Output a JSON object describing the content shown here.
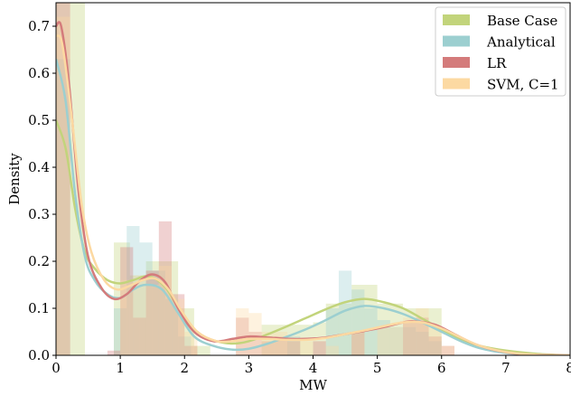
{
  "chart_data": {
    "type": "histogram-density",
    "xlabel": "MW",
    "ylabel": "Density",
    "xlim": [
      0,
      8
    ],
    "ylim": [
      0,
      0.75
    ],
    "xticks": [
      "0",
      "1",
      "2",
      "3",
      "4",
      "5",
      "6",
      "7",
      "8"
    ],
    "yticks": [
      "0.0",
      "0.1",
      "0.2",
      "0.3",
      "0.4",
      "0.5",
      "0.6",
      "0.7"
    ],
    "legend_position": "top-right",
    "series": [
      {
        "name": "Base Case",
        "color": "#c2d47b",
        "bins": [
          [
            0,
            0.22,
            0.75
          ],
          [
            0.22,
            0.45,
            0.75
          ],
          [
            0.9,
            1.15,
            0.24
          ],
          [
            1.15,
            1.4,
            0.17
          ],
          [
            1.4,
            1.65,
            0.2
          ],
          [
            1.65,
            1.9,
            0.2
          ],
          [
            1.9,
            2.15,
            0.1
          ],
          [
            2.15,
            2.4,
            0.02
          ],
          [
            3.2,
            3.6,
            0.065
          ],
          [
            3.6,
            4.0,
            0.065
          ],
          [
            4.0,
            4.2,
            0.07
          ],
          [
            4.2,
            4.6,
            0.11
          ],
          [
            4.6,
            5.0,
            0.15
          ],
          [
            5.0,
            5.4,
            0.11
          ],
          [
            5.4,
            5.8,
            0.1
          ],
          [
            5.8,
            6.0,
            0.1
          ]
        ],
        "curve": [
          [
            0,
            0.5
          ],
          [
            0.15,
            0.44
          ],
          [
            0.3,
            0.31
          ],
          [
            0.45,
            0.22
          ],
          [
            0.6,
            0.185
          ],
          [
            0.8,
            0.16
          ],
          [
            1.0,
            0.153
          ],
          [
            1.2,
            0.16
          ],
          [
            1.45,
            0.168
          ],
          [
            1.7,
            0.145
          ],
          [
            1.95,
            0.09
          ],
          [
            2.2,
            0.045
          ],
          [
            2.5,
            0.03
          ],
          [
            2.75,
            0.025
          ],
          [
            3.0,
            0.03
          ],
          [
            3.3,
            0.045
          ],
          [
            3.6,
            0.062
          ],
          [
            3.9,
            0.08
          ],
          [
            4.2,
            0.098
          ],
          [
            4.5,
            0.113
          ],
          [
            4.8,
            0.12
          ],
          [
            5.1,
            0.113
          ],
          [
            5.4,
            0.1
          ],
          [
            5.7,
            0.078
          ],
          [
            6.0,
            0.055
          ],
          [
            6.3,
            0.033
          ],
          [
            6.6,
            0.02
          ],
          [
            7.0,
            0.01
          ],
          [
            7.5,
            0.003
          ],
          [
            8.0,
            0.0
          ]
        ]
      },
      {
        "name": "Analytical",
        "color": "#9ccfd0",
        "bins": [
          [
            0,
            0.22,
            0.63
          ],
          [
            0.9,
            1.1,
            0.1
          ],
          [
            1.1,
            1.3,
            0.275
          ],
          [
            1.3,
            1.5,
            0.24
          ],
          [
            1.5,
            1.7,
            0.18
          ],
          [
            1.7,
            1.9,
            0.12
          ],
          [
            1.9,
            2.1,
            0.04
          ],
          [
            3.6,
            3.8,
            0.04
          ],
          [
            4.2,
            4.4,
            0.1
          ],
          [
            4.4,
            4.6,
            0.18
          ],
          [
            4.6,
            4.8,
            0.14
          ],
          [
            4.8,
            5.0,
            0.1
          ],
          [
            5.0,
            5.2,
            0.075
          ],
          [
            5.2,
            5.4,
            0.06
          ],
          [
            5.4,
            5.6,
            0.06
          ],
          [
            5.6,
            5.8,
            0.05
          ],
          [
            5.8,
            6.0,
            0.03
          ]
        ],
        "curve": [
          [
            0,
            0.63
          ],
          [
            0.15,
            0.54
          ],
          [
            0.3,
            0.34
          ],
          [
            0.45,
            0.21
          ],
          [
            0.6,
            0.16
          ],
          [
            0.8,
            0.13
          ],
          [
            1.0,
            0.122
          ],
          [
            1.2,
            0.14
          ],
          [
            1.4,
            0.15
          ],
          [
            1.65,
            0.14
          ],
          [
            1.9,
            0.09
          ],
          [
            2.15,
            0.04
          ],
          [
            2.45,
            0.02
          ],
          [
            2.75,
            0.012
          ],
          [
            3.0,
            0.014
          ],
          [
            3.3,
            0.025
          ],
          [
            3.6,
            0.04
          ],
          [
            3.9,
            0.056
          ],
          [
            4.2,
            0.075
          ],
          [
            4.5,
            0.095
          ],
          [
            4.8,
            0.105
          ],
          [
            5.1,
            0.1
          ],
          [
            5.4,
            0.088
          ],
          [
            5.7,
            0.07
          ],
          [
            6.0,
            0.05
          ],
          [
            6.3,
            0.03
          ],
          [
            6.6,
            0.015
          ],
          [
            7.0,
            0.005
          ],
          [
            7.5,
            0.001
          ],
          [
            8.0,
            0.0
          ]
        ]
      },
      {
        "name": "LR",
        "color": "#d47b7b",
        "bins": [
          [
            0,
            0.22,
            0.75
          ],
          [
            0.8,
            1.0,
            0.01
          ],
          [
            1.0,
            1.2,
            0.23
          ],
          [
            1.2,
            1.4,
            0.08
          ],
          [
            1.4,
            1.6,
            0.18
          ],
          [
            1.6,
            1.8,
            0.285
          ],
          [
            1.8,
            2.0,
            0.13
          ],
          [
            2.0,
            2.2,
            0.02
          ],
          [
            2.8,
            3.0,
            0.08
          ],
          [
            3.0,
            3.2,
            0.05
          ],
          [
            3.2,
            3.4,
            0.03
          ],
          [
            3.4,
            3.6,
            0.04
          ],
          [
            3.6,
            3.8,
            0.03
          ],
          [
            4.0,
            4.2,
            0.03
          ],
          [
            4.6,
            4.8,
            0.05
          ],
          [
            5.4,
            5.6,
            0.07
          ],
          [
            5.6,
            5.8,
            0.08
          ],
          [
            5.8,
            6.0,
            0.04
          ],
          [
            6.0,
            6.2,
            0.02
          ]
        ],
        "curve": [
          [
            0,
            0.7
          ],
          [
            0.08,
            0.7
          ],
          [
            0.2,
            0.58
          ],
          [
            0.35,
            0.35
          ],
          [
            0.5,
            0.21
          ],
          [
            0.7,
            0.145
          ],
          [
            0.9,
            0.12
          ],
          [
            1.1,
            0.13
          ],
          [
            1.3,
            0.158
          ],
          [
            1.5,
            0.172
          ],
          [
            1.7,
            0.155
          ],
          [
            1.9,
            0.1
          ],
          [
            2.15,
            0.05
          ],
          [
            2.45,
            0.03
          ],
          [
            2.75,
            0.035
          ],
          [
            3.0,
            0.04
          ],
          [
            3.3,
            0.038
          ],
          [
            3.6,
            0.035
          ],
          [
            3.9,
            0.035
          ],
          [
            4.2,
            0.038
          ],
          [
            4.5,
            0.045
          ],
          [
            4.8,
            0.052
          ],
          [
            5.1,
            0.06
          ],
          [
            5.4,
            0.07
          ],
          [
            5.6,
            0.072
          ],
          [
            5.9,
            0.065
          ],
          [
            6.2,
            0.045
          ],
          [
            6.5,
            0.025
          ],
          [
            6.8,
            0.012
          ],
          [
            7.2,
            0.003
          ],
          [
            7.6,
            0.001
          ],
          [
            8.0,
            0.0
          ]
        ]
      },
      {
        "name": "SVM, C=1",
        "color": "#fcd9a2",
        "bins": [
          [
            0,
            0.22,
            0.72
          ],
          [
            1.0,
            1.2,
            0.16
          ],
          [
            1.2,
            1.4,
            0.17
          ],
          [
            1.4,
            1.6,
            0.15
          ],
          [
            1.6,
            1.8,
            0.19
          ],
          [
            1.8,
            2.0,
            0.12
          ],
          [
            2.0,
            2.2,
            0.05
          ],
          [
            2.8,
            3.0,
            0.1
          ],
          [
            3.0,
            3.2,
            0.09
          ],
          [
            3.2,
            3.4,
            0.05
          ],
          [
            3.4,
            3.6,
            0.05
          ],
          [
            3.6,
            3.8,
            0.03
          ],
          [
            3.8,
            4.0,
            0.03
          ],
          [
            4.2,
            4.4,
            0.02
          ],
          [
            4.6,
            4.8,
            0.05
          ],
          [
            5.0,
            5.2,
            0.06
          ],
          [
            5.2,
            5.4,
            0.06
          ],
          [
            5.4,
            5.6,
            0.08
          ],
          [
            5.6,
            5.8,
            0.1
          ],
          [
            5.8,
            6.0,
            0.06
          ],
          [
            6.0,
            6.2,
            0.02
          ]
        ],
        "curve": [
          [
            0,
            0.68
          ],
          [
            0.1,
            0.66
          ],
          [
            0.25,
            0.5
          ],
          [
            0.4,
            0.32
          ],
          [
            0.55,
            0.22
          ],
          [
            0.75,
            0.16
          ],
          [
            0.95,
            0.14
          ],
          [
            1.15,
            0.148
          ],
          [
            1.35,
            0.16
          ],
          [
            1.55,
            0.163
          ],
          [
            1.75,
            0.14
          ],
          [
            1.95,
            0.095
          ],
          [
            2.2,
            0.05
          ],
          [
            2.5,
            0.03
          ],
          [
            2.75,
            0.03
          ],
          [
            3.0,
            0.035
          ],
          [
            3.3,
            0.035
          ],
          [
            3.6,
            0.033
          ],
          [
            3.9,
            0.033
          ],
          [
            4.2,
            0.037
          ],
          [
            4.5,
            0.045
          ],
          [
            4.8,
            0.053
          ],
          [
            5.1,
            0.062
          ],
          [
            5.4,
            0.07
          ],
          [
            5.7,
            0.07
          ],
          [
            6.0,
            0.057
          ],
          [
            6.3,
            0.038
          ],
          [
            6.6,
            0.02
          ],
          [
            7.0,
            0.007
          ],
          [
            7.5,
            0.001
          ],
          [
            8.0,
            0.0
          ]
        ]
      }
    ]
  }
}
